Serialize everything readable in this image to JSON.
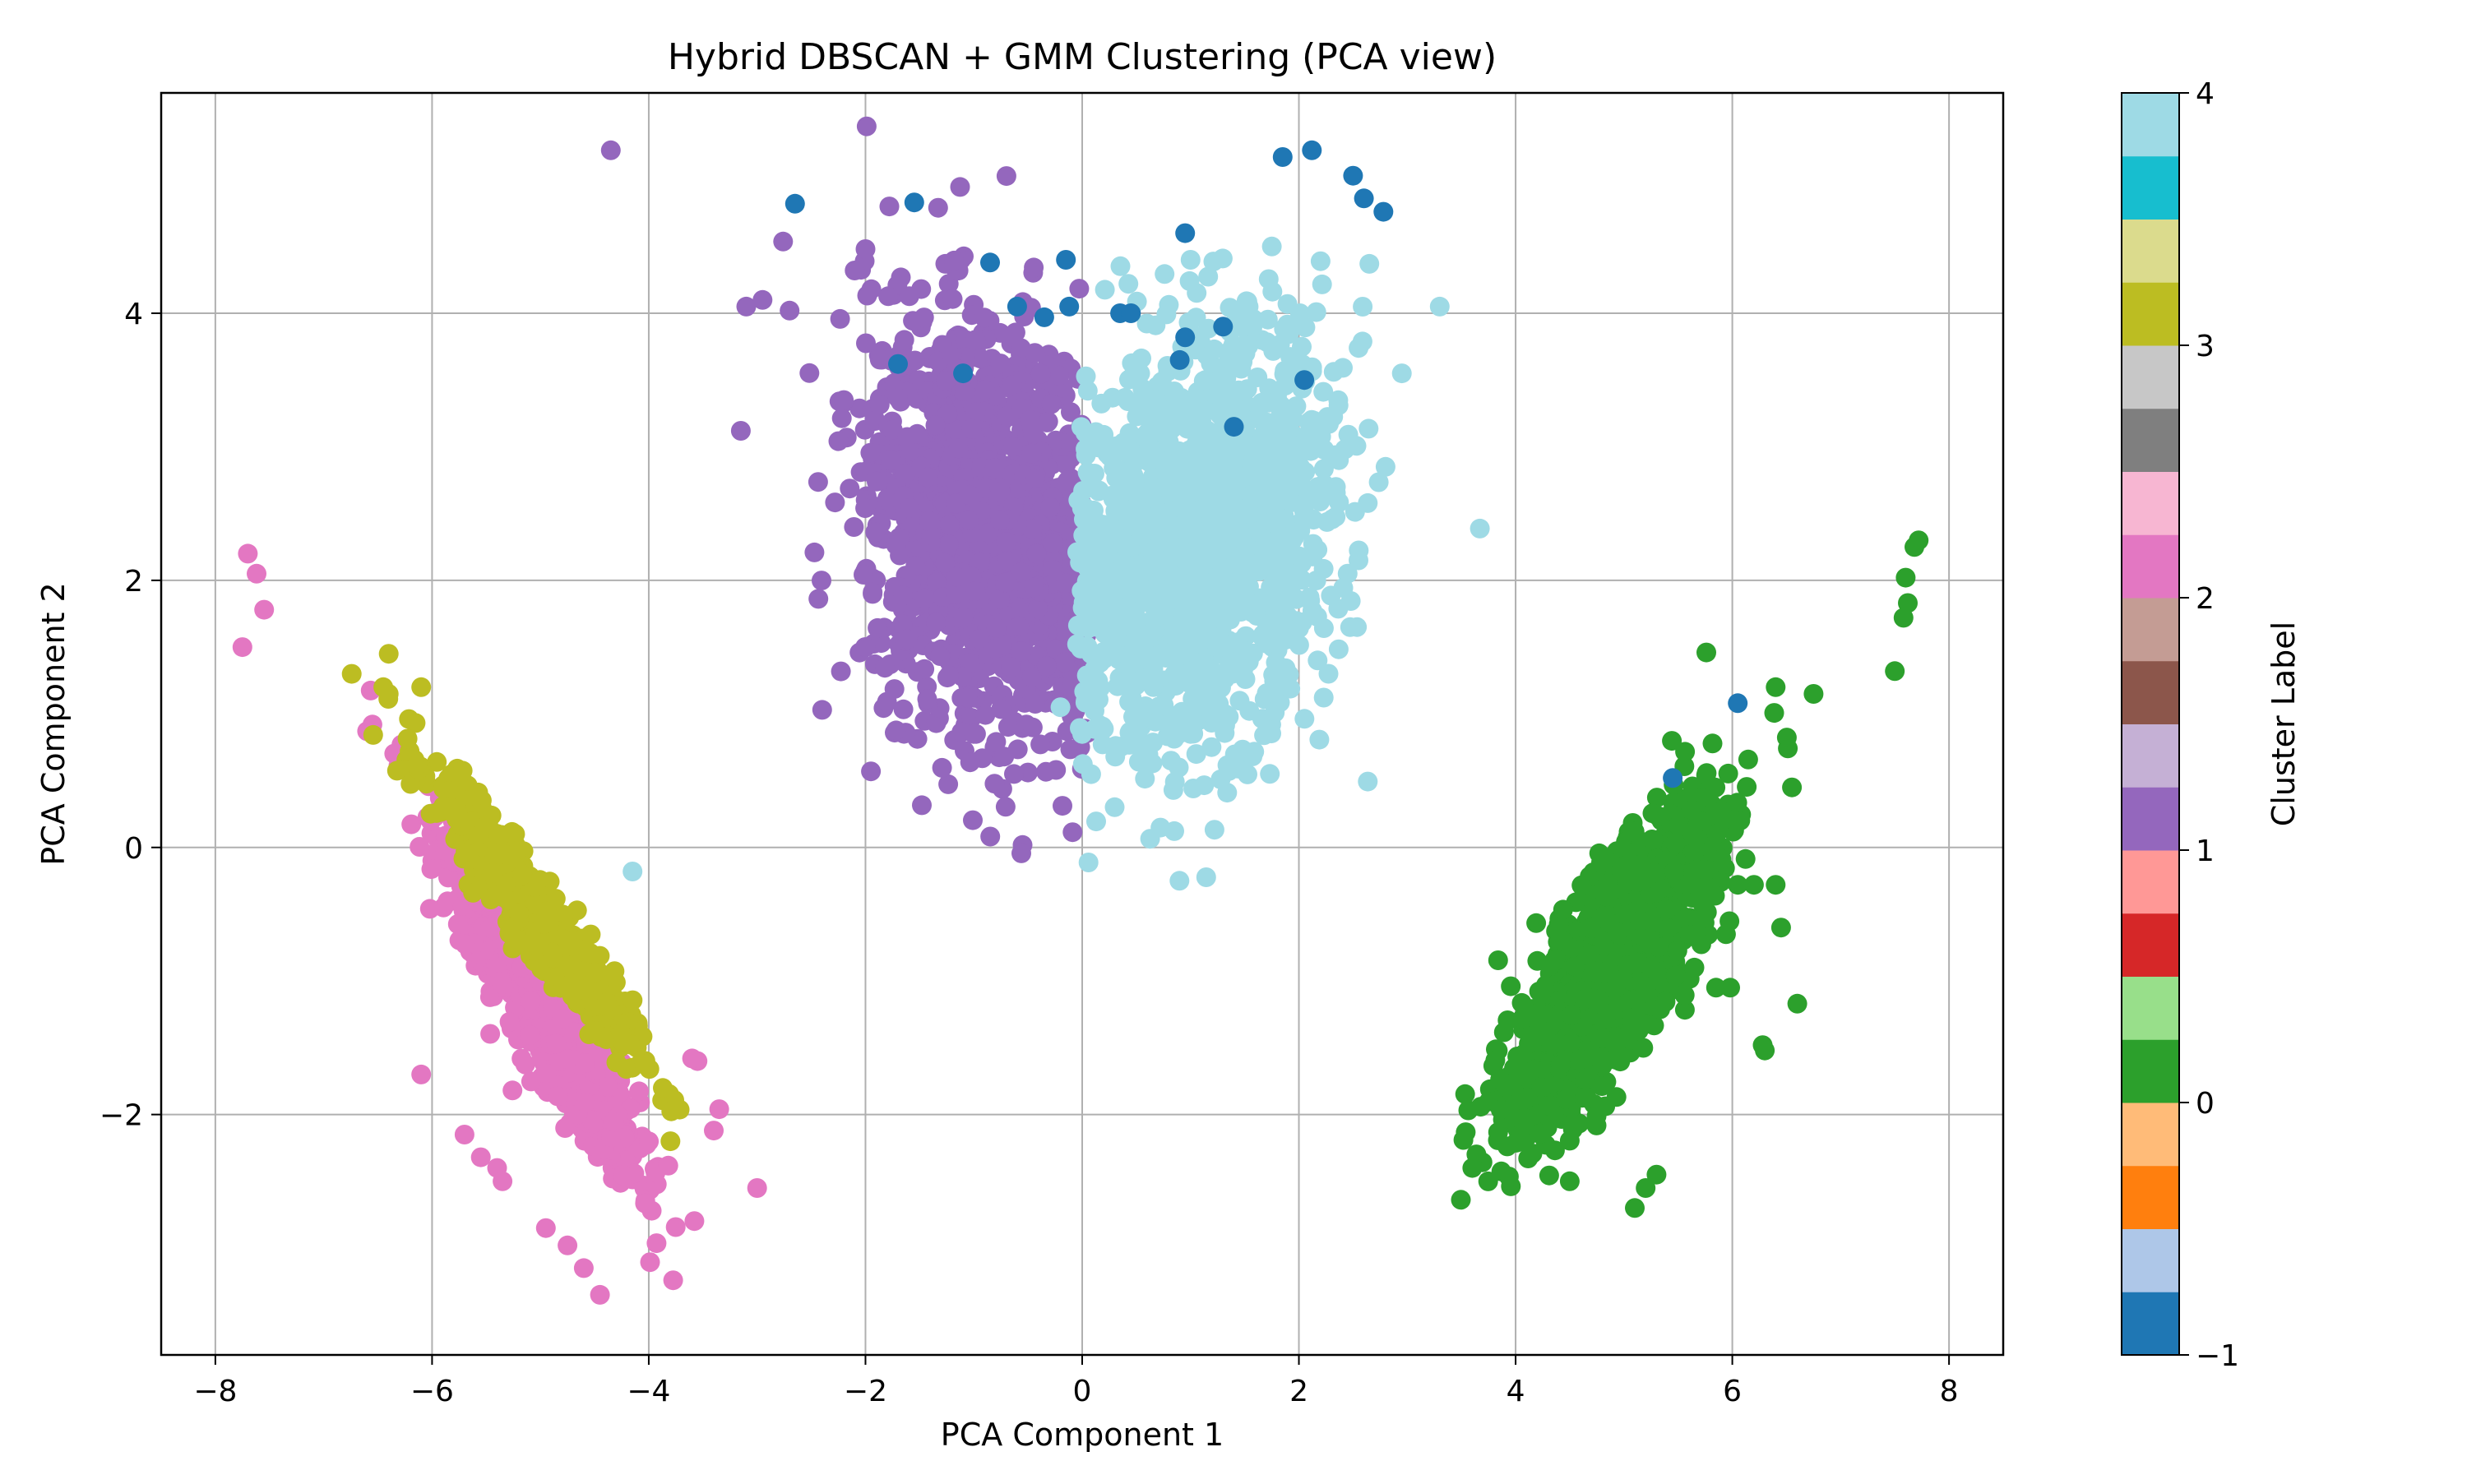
{
  "chart_data": {
    "type": "scatter",
    "title": "Hybrid DBSCAN + GMM Clustering (PCA view)",
    "xlabel": "PCA Component 1",
    "ylabel": "PCA Component 2",
    "xlim": [
      -8.5,
      8.5
    ],
    "ylim": [
      -3.8,
      5.65
    ],
    "xticks": [
      -8,
      -6,
      -4,
      -2,
      0,
      2,
      4,
      6,
      8
    ],
    "yticks": [
      -2,
      0,
      2,
      4
    ],
    "grid": true,
    "colormap": "tab20",
    "colorbar": {
      "label": "Cluster Label",
      "range": [
        -1,
        4
      ],
      "ticks": [
        -1,
        0,
        1,
        2,
        3,
        4
      ],
      "colors": [
        "#1f77b4",
        "#aec7e8",
        "#ff7f0e",
        "#ffbb78",
        "#2ca02c",
        "#98df8a",
        "#d62728",
        "#ff9896",
        "#9467bd",
        "#c5b0d5",
        "#8c564b",
        "#c49c94",
        "#e377c2",
        "#f7b6d2",
        "#7f7f7f",
        "#c7c7c7",
        "#bcbd22",
        "#dbdb8d",
        "#17becf",
        "#9edae5"
      ]
    },
    "clusters": [
      {
        "label": -1,
        "color": "#1f77b4",
        "points": [
          [
            -2.65,
            4.82
          ],
          [
            -1.55,
            4.83
          ],
          [
            -0.85,
            4.38
          ],
          [
            -0.15,
            4.4
          ],
          [
            0.95,
            4.6
          ],
          [
            1.85,
            5.17
          ],
          [
            2.12,
            5.22
          ],
          [
            2.5,
            5.03
          ],
          [
            2.6,
            4.86
          ],
          [
            2.78,
            4.76
          ],
          [
            -0.6,
            4.05
          ],
          [
            -0.35,
            3.97
          ],
          [
            -0.12,
            4.05
          ],
          [
            0.35,
            4.0
          ],
          [
            0.45,
            4.0
          ],
          [
            0.95,
            3.82
          ],
          [
            1.3,
            3.9
          ],
          [
            0.9,
            3.65
          ],
          [
            -1.7,
            3.62
          ],
          [
            -1.1,
            3.55
          ],
          [
            1.4,
            3.15
          ],
          [
            2.05,
            3.5
          ],
          [
            5.45,
            0.52
          ],
          [
            6.05,
            1.08
          ]
        ]
      },
      {
        "label": 0,
        "color": "#2ca02c",
        "centroid": [
          4.9,
          -0.9
        ],
        "spread": [
          0.45,
          0.35
        ],
        "slope": 1.0,
        "n": 1600,
        "points": [
          [
            7.5,
            1.32
          ],
          [
            7.58,
            1.72
          ],
          [
            7.62,
            1.83
          ],
          [
            7.6,
            2.02
          ],
          [
            7.68,
            2.25
          ],
          [
            7.72,
            2.3
          ],
          [
            6.75,
            1.15
          ],
          [
            6.55,
            0.45
          ],
          [
            6.6,
            -1.17
          ],
          [
            6.3,
            -1.52
          ],
          [
            6.28,
            -1.48
          ],
          [
            5.98,
            -1.05
          ],
          [
            6.05,
            -0.28
          ],
          [
            5.65,
            -0.9
          ],
          [
            3.6,
            -2.4
          ],
          [
            5.1,
            -2.7
          ],
          [
            5.2,
            -2.55
          ],
          [
            5.3,
            -2.45
          ],
          [
            4.5,
            -2.5
          ],
          [
            4.2,
            -0.85
          ],
          [
            6.4,
            1.2
          ],
          [
            6.2,
            -0.28
          ],
          [
            6.4,
            -0.28
          ],
          [
            6.45,
            -0.6
          ],
          [
            5.85,
            -1.05
          ]
        ]
      },
      {
        "label": 1,
        "color": "#9467bd",
        "centroid": [
          -0.9,
          2.4
        ],
        "spread": [
          0.55,
          0.75
        ],
        "slope": -0.3,
        "n": 1500,
        "points": [
          [
            -4.35,
            5.22
          ],
          [
            -1.78,
            4.8
          ],
          [
            -1.33,
            4.79
          ],
          [
            -2.0,
            4.48
          ],
          [
            -2.1,
            4.32
          ],
          [
            -3.1,
            4.05
          ],
          [
            -2.95,
            4.1
          ],
          [
            -2.7,
            4.02
          ],
          [
            -3.15,
            3.12
          ],
          [
            -2.4,
            1.03
          ],
          [
            -1.95,
            0.57
          ],
          [
            -2.0,
            1.5
          ],
          [
            -0.98,
            0.85
          ],
          [
            -1.0,
            0.85
          ],
          [
            -2.2,
            3.35
          ]
        ]
      },
      {
        "label": 2,
        "color": "#e377c2",
        "centroid": [
          -5.0,
          -1.15
        ],
        "spread": [
          0.45,
          0.25
        ],
        "slope": -1.3,
        "n": 1000,
        "points": [
          [
            -7.75,
            1.5
          ],
          [
            -7.7,
            2.2
          ],
          [
            -7.62,
            2.05
          ],
          [
            -7.55,
            1.78
          ],
          [
            -6.6,
            0.87
          ],
          [
            -6.55,
            0.92
          ],
          [
            -6.1,
            -1.7
          ],
          [
            -5.7,
            -2.15
          ],
          [
            -5.55,
            -2.32
          ],
          [
            -5.4,
            -2.4
          ],
          [
            -5.35,
            -2.5
          ],
          [
            -4.95,
            -2.85
          ],
          [
            -4.75,
            -2.98
          ],
          [
            -4.6,
            -3.15
          ],
          [
            -4.45,
            -3.35
          ],
          [
            -3.0,
            -2.55
          ],
          [
            -3.35,
            -1.96
          ],
          [
            -3.4,
            -2.12
          ],
          [
            -3.55,
            -1.6
          ],
          [
            -3.6,
            -1.58
          ]
        ]
      },
      {
        "label": 3,
        "color": "#bcbd22",
        "centroid": [
          -5.05,
          -0.5
        ],
        "spread": [
          0.45,
          0.15
        ],
        "slope": -1.05,
        "n": 700,
        "points": [
          [
            -6.4,
            1.45
          ],
          [
            -6.45,
            1.2
          ],
          [
            -6.4,
            1.15
          ],
          [
            -6.1,
            1.2
          ],
          [
            -3.8,
            -2.2
          ]
        ]
      },
      {
        "label": 4,
        "color": "#9edae5",
        "centroid": [
          1.1,
          2.3
        ],
        "spread": [
          0.6,
          0.75
        ],
        "slope": 0.3,
        "n": 1500,
        "points": [
          [
            3.3,
            4.05
          ],
          [
            2.65,
            4.37
          ],
          [
            2.2,
            4.39
          ],
          [
            1.75,
            4.5
          ],
          [
            1.0,
            4.4
          ],
          [
            2.95,
            3.55
          ],
          [
            2.8,
            2.85
          ],
          [
            2.55,
            2.15
          ],
          [
            2.0,
            2.18
          ],
          [
            1.8,
            1.3
          ],
          [
            1.0,
            0.85
          ],
          [
            -4.15,
            -0.18
          ],
          [
            0.0,
            0.85
          ],
          [
            -0.2,
            1.05
          ]
        ]
      }
    ]
  }
}
